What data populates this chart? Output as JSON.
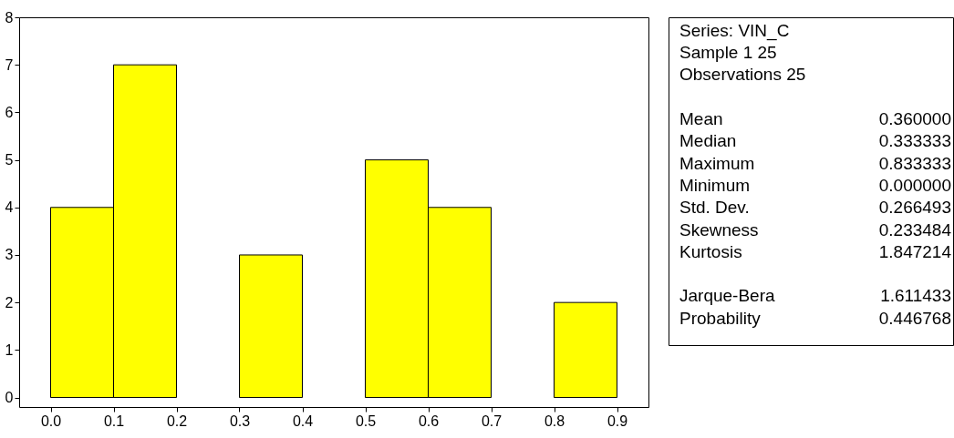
{
  "chart_data": [
    {
      "type": "histogram",
      "bins": [
        0,
        0.1,
        0.2,
        0.3,
        0.4,
        0.5,
        0.6,
        0.7,
        0.8,
        0.9
      ],
      "values": [
        4,
        7,
        0,
        3,
        0,
        5,
        4,
        0,
        2
      ],
      "color": "#ffff00",
      "xlim": [
        -0.05,
        0.95
      ],
      "ylim": [
        -0.2,
        8
      ],
      "xticks": [
        {
          "value": 0,
          "label": "0.0"
        },
        {
          "value": 0.1,
          "label": "0.1"
        },
        {
          "value": 0.2,
          "label": "0.2"
        },
        {
          "value": 0.3,
          "label": "0.3"
        },
        {
          "value": 0.4,
          "label": "0.4"
        },
        {
          "value": 0.5,
          "label": "0.5"
        },
        {
          "value": 0.6,
          "label": "0.6"
        },
        {
          "value": 0.7,
          "label": "0.7"
        },
        {
          "value": 0.8,
          "label": "0.8"
        },
        {
          "value": 0.9,
          "label": "0.9"
        }
      ],
      "yticks": [
        0,
        1,
        2,
        3,
        4,
        5,
        6,
        7,
        8
      ],
      "grid": false
    },
    {
      "type": "other",
      "annotations": [
        "Series: VIN_C",
        "Sample 1 25",
        "Observations 25"
      ],
      "categories": [
        "Mean",
        "Median",
        "Maximum",
        "Minimum",
        "Std. Dev.",
        "Skewness",
        "Kurtosis",
        null,
        "Jarque-Bera",
        "Probability"
      ],
      "value_labels": [
        "0.360000",
        "0.333333",
        "0.833333",
        "0.000000",
        "0.266493",
        "0.233484",
        "1.847214",
        null,
        "1.611433",
        "0.446768"
      ]
    }
  ]
}
